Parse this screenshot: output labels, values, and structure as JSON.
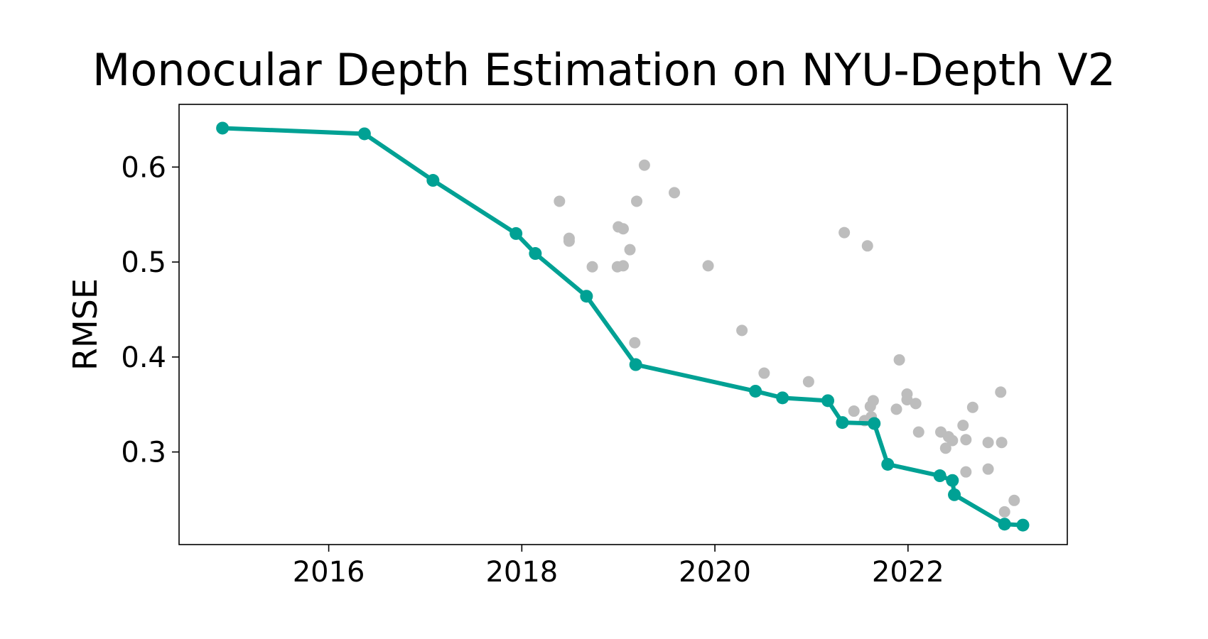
{
  "chart_data": {
    "type": "scatter",
    "title": "Monocular Depth Estimation on NYU-Depth V2",
    "xlabel": "",
    "ylabel": "RMSE",
    "xlim": [
      2014.45,
      2023.65
    ],
    "ylim": [
      0.2025,
      0.666
    ],
    "x_ticks": [
      2016,
      2018,
      2020,
      2022
    ],
    "x_tick_labels": [
      "2016",
      "2018",
      "2020",
      "2022"
    ],
    "y_ticks": [
      0.3,
      0.4,
      0.5,
      0.6
    ],
    "y_tick_labels": [
      "0.3",
      "0.4",
      "0.5",
      "0.6"
    ],
    "grid": false,
    "legend": "none",
    "colors": {
      "sota": "#00a194",
      "other": "#bdbdbd"
    },
    "series": [
      {
        "role": "other-models",
        "points": [
          [
            2018.39,
            0.564
          ],
          [
            2018.49,
            0.525
          ],
          [
            2018.49,
            0.522
          ],
          [
            2018.73,
            0.495
          ],
          [
            2019.0,
            0.537
          ],
          [
            2019.05,
            0.535
          ],
          [
            2018.99,
            0.495
          ],
          [
            2019.05,
            0.496
          ],
          [
            2019.12,
            0.513
          ],
          [
            2019.19,
            0.564
          ],
          [
            2019.27,
            0.602
          ],
          [
            2019.58,
            0.573
          ],
          [
            2019.17,
            0.415
          ],
          [
            2019.93,
            0.496
          ],
          [
            2020.28,
            0.428
          ],
          [
            2020.51,
            0.383
          ],
          [
            2020.97,
            0.374
          ],
          [
            2021.34,
            0.531
          ],
          [
            2021.44,
            0.343
          ],
          [
            2021.55,
            0.333
          ],
          [
            2021.61,
            0.348
          ],
          [
            2021.64,
            0.354
          ],
          [
            2021.62,
            0.337
          ],
          [
            2021.58,
            0.517
          ],
          [
            2021.88,
            0.345
          ],
          [
            2021.91,
            0.397
          ],
          [
            2021.99,
            0.361
          ],
          [
            2021.99,
            0.355
          ],
          [
            2022.08,
            0.351
          ],
          [
            2022.11,
            0.321
          ],
          [
            2022.34,
            0.321
          ],
          [
            2022.39,
            0.304
          ],
          [
            2022.42,
            0.316
          ],
          [
            2022.46,
            0.312
          ],
          [
            2022.57,
            0.328
          ],
          [
            2022.6,
            0.313
          ],
          [
            2022.6,
            0.279
          ],
          [
            2022.67,
            0.347
          ],
          [
            2022.83,
            0.282
          ],
          [
            2022.83,
            0.31
          ],
          [
            2022.96,
            0.363
          ],
          [
            2022.97,
            0.31
          ],
          [
            2023.0,
            0.237
          ],
          [
            2023.1,
            0.249
          ]
        ]
      },
      {
        "role": "state-of-the-art",
        "points": [
          [
            2014.9,
            0.641
          ],
          [
            2016.37,
            0.635
          ],
          [
            2017.08,
            0.586
          ],
          [
            2017.94,
            0.53
          ],
          [
            2018.14,
            0.509
          ],
          [
            2018.67,
            0.464
          ],
          [
            2019.18,
            0.392
          ],
          [
            2020.42,
            0.364
          ],
          [
            2020.7,
            0.357
          ],
          [
            2021.17,
            0.354
          ],
          [
            2021.32,
            0.331
          ],
          [
            2021.65,
            0.33
          ],
          [
            2021.79,
            0.287
          ],
          [
            2022.33,
            0.275
          ],
          [
            2022.46,
            0.27
          ],
          [
            2022.48,
            0.255
          ],
          [
            2023.0,
            0.224
          ],
          [
            2023.19,
            0.223
          ]
        ]
      }
    ]
  }
}
